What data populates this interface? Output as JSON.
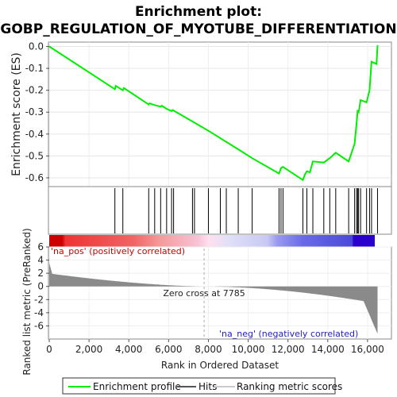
{
  "chart_data": {
    "type": "line",
    "title_line1": "Enrichment plot:",
    "title_line2": "GOBP_REGULATION_OF_MYOTUBE_DIFFERENTIATION",
    "ylabel_top": "Enrichment score (ES)",
    "ylabel_bottom": "Ranked list metric (PreRanked)",
    "xlabel": "Rank in Ordered Dataset",
    "xlim": [
      0,
      17200
    ],
    "ylim_es": [
      -0.64,
      0.02
    ],
    "ylim_metric": [
      -8,
      6
    ],
    "x_ticks": [
      "0",
      "2,000",
      "4,000",
      "6,000",
      "8,000",
      "10,000",
      "12,000",
      "14,000",
      "16,000"
    ],
    "x_tick_values": [
      0,
      2000,
      4000,
      6000,
      8000,
      10000,
      12000,
      14000,
      16000
    ],
    "es_ticks": [
      "0.0",
      "-0.1",
      "-0.2",
      "-0.3",
      "-0.4",
      "-0.5",
      "-0.6"
    ],
    "es_tick_values": [
      0.0,
      -0.1,
      -0.2,
      -0.3,
      -0.4,
      -0.5,
      -0.6
    ],
    "metric_ticks": [
      "6",
      "4",
      "2",
      "0",
      "-2",
      "-4",
      "-6"
    ],
    "metric_tick_values": [
      6,
      4,
      2,
      0,
      -2,
      -4,
      -6
    ],
    "enrichment_profile": {
      "x": [
        0,
        3300,
        3350,
        3700,
        3750,
        5000,
        5050,
        5300,
        5600,
        5650,
        5900,
        6150,
        6200,
        8000,
        9500,
        10200,
        11550,
        11650,
        11750,
        12750,
        12850,
        12950,
        13100,
        13250,
        13800,
        14100,
        14400,
        15050,
        15350,
        15450,
        15500,
        15550,
        15650,
        15950,
        16100,
        16200,
        16450,
        16500
      ],
      "y": [
        0.0,
        -0.195,
        -0.18,
        -0.2,
        -0.19,
        -0.265,
        -0.26,
        -0.268,
        -0.275,
        -0.27,
        -0.285,
        -0.295,
        -0.29,
        -0.385,
        -0.47,
        -0.51,
        -0.58,
        -0.555,
        -0.55,
        -0.61,
        -0.585,
        -0.57,
        -0.575,
        -0.525,
        -0.53,
        -0.51,
        -0.485,
        -0.525,
        -0.445,
        -0.35,
        -0.295,
        -0.3,
        -0.245,
        -0.255,
        -0.2,
        -0.07,
        -0.08,
        0.005
      ]
    },
    "hits": [
      3300,
      3700,
      5000,
      5300,
      5600,
      5900,
      6150,
      6250,
      7200,
      7300,
      8000,
      8600,
      8900,
      9500,
      10200,
      11550,
      11650,
      11750,
      12750,
      12950,
      13250,
      13800,
      14100,
      14400,
      15050,
      15350,
      15450,
      15500,
      15550,
      15650,
      15950,
      16100,
      16200,
      16500
    ],
    "zero_cross_label": "Zero cross at 7785",
    "zero_cross_rank": 7785,
    "pos_label": "'na_pos' (positively correlated)",
    "neg_label": "'na_neg' (negatively correlated)",
    "legend": [
      "Enrichment profile",
      "Hits",
      "Ranking metric scores"
    ],
    "colors": {
      "profile": "#00ee00",
      "hits": "#000000",
      "pos_label": "#cc0000",
      "neg_label": "#2222bb",
      "metric_fill": "#888888",
      "zero_line": "#aaaaaa"
    }
  }
}
